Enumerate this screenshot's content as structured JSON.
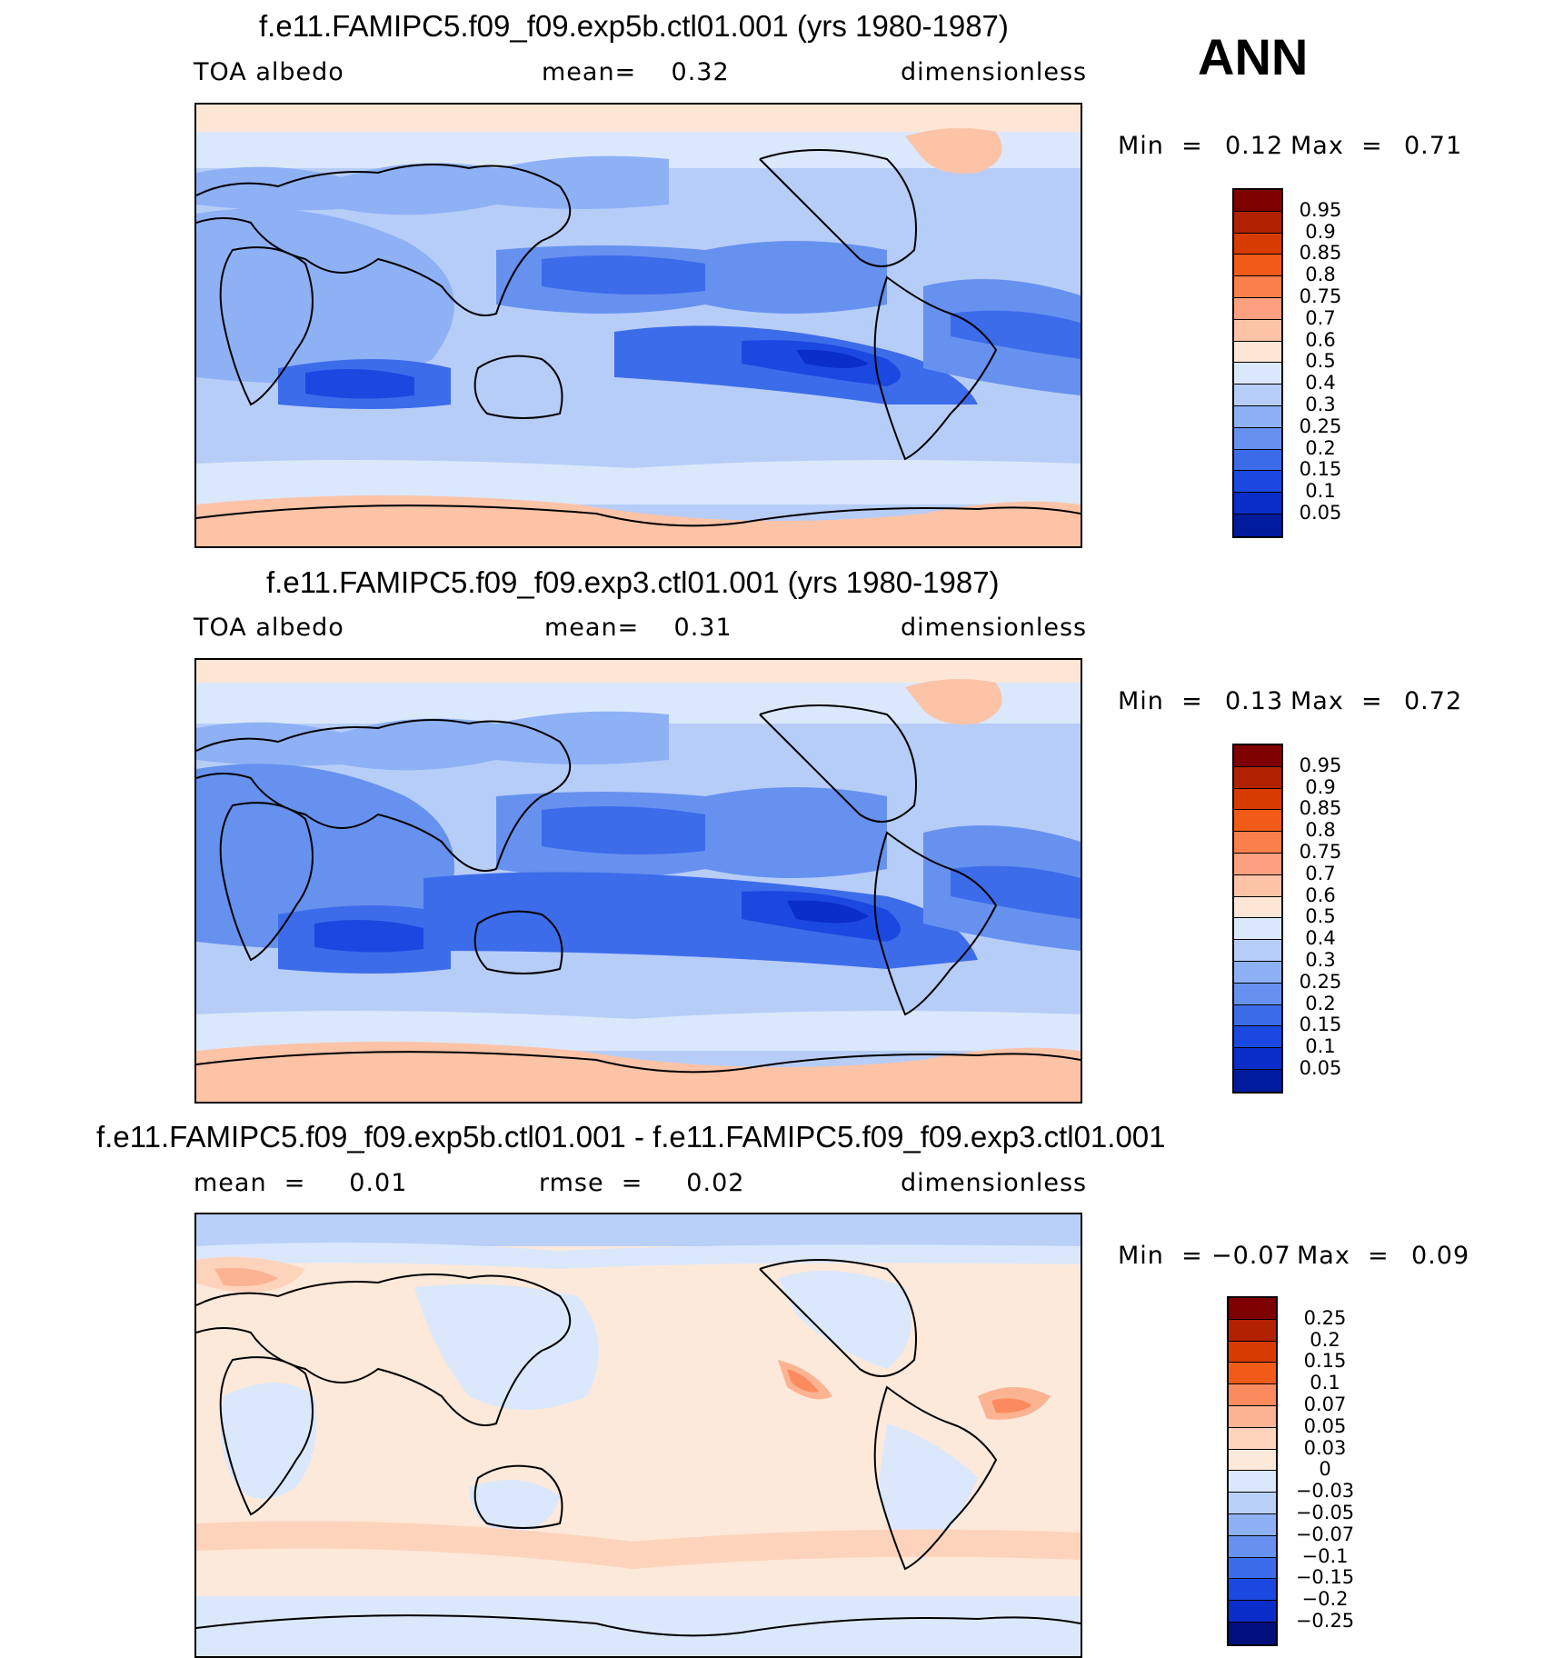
{
  "season": "ANN",
  "panels": [
    {
      "title": "f.e11.FAMIPC5.f09_f09.exp5b.ctl01.001 (yrs 1980-1987)",
      "left_label": "TOA albedo",
      "center_label": "mean=    0.32",
      "right_label": "dimensionless",
      "min_label": "Min  =",
      "min_value": "0.12",
      "max_label": "Max  =",
      "max_value": "0.71",
      "colorbar_labels": [
        "0.95",
        "0.9",
        "0.85",
        "0.8",
        "0.75",
        "0.7",
        "0.6",
        "0.5",
        "0.4",
        "0.3",
        "0.25",
        "0.2",
        "0.15",
        "0.1",
        "0.05"
      ]
    },
    {
      "title": "f.e11.FAMIPC5.f09_f09.exp3.ctl01.001 (yrs 1980-1987)",
      "left_label": "TOA albedo",
      "center_label": "mean=    0.31",
      "right_label": "dimensionless",
      "min_label": "Min  =",
      "min_value": "0.13",
      "max_label": "Max  =",
      "max_value": "0.72",
      "colorbar_labels": [
        "0.95",
        "0.9",
        "0.85",
        "0.8",
        "0.75",
        "0.7",
        "0.6",
        "0.5",
        "0.4",
        "0.3",
        "0.25",
        "0.2",
        "0.15",
        "0.1",
        "0.05"
      ]
    },
    {
      "title": "f.e11.FAMIPC5.f09_f09.exp5b.ctl01.001 - f.e11.FAMIPC5.f09_f09.exp3.ctl01.001",
      "left_label": "mean  =     0.01",
      "center_label": "rmse  =     0.02",
      "right_label": "dimensionless",
      "min_label": "Min  =",
      "min_value": "−0.07",
      "max_label": "Max  =",
      "max_value": "0.09",
      "colorbar_labels": [
        "0.25",
        "0.2",
        "0.15",
        "0.1",
        "0.07",
        "0.05",
        "0.03",
        "0",
        "−0.03",
        "−0.05",
        "−0.07",
        "−0.1",
        "−0.15",
        "−0.2",
        "−0.25"
      ]
    }
  ],
  "colors": {
    "abs_scale": [
      "#7f0000",
      "#b22100",
      "#d83b00",
      "#f25a17",
      "#fb7f4a",
      "#fca081",
      "#fcc3a7",
      "#fde6d6",
      "#dbe8fb",
      "#b6cdf8",
      "#8eb1f5",
      "#6691ef",
      "#3d6cea",
      "#1b48e0",
      "#0b2dc9",
      "#001a9e",
      "#000f7c"
    ],
    "diff_scale": [
      "#7f0000",
      "#b22100",
      "#d83b00",
      "#f25a17",
      "#fb8b5f",
      "#fcb391",
      "#fdd3bb",
      "#fde9da",
      "#dbe8fb",
      "#b9d0f8",
      "#8eb1f5",
      "#6691ef",
      "#3d6cea",
      "#1b48e0",
      "#0b2dc9",
      "#000f7c"
    ]
  }
}
